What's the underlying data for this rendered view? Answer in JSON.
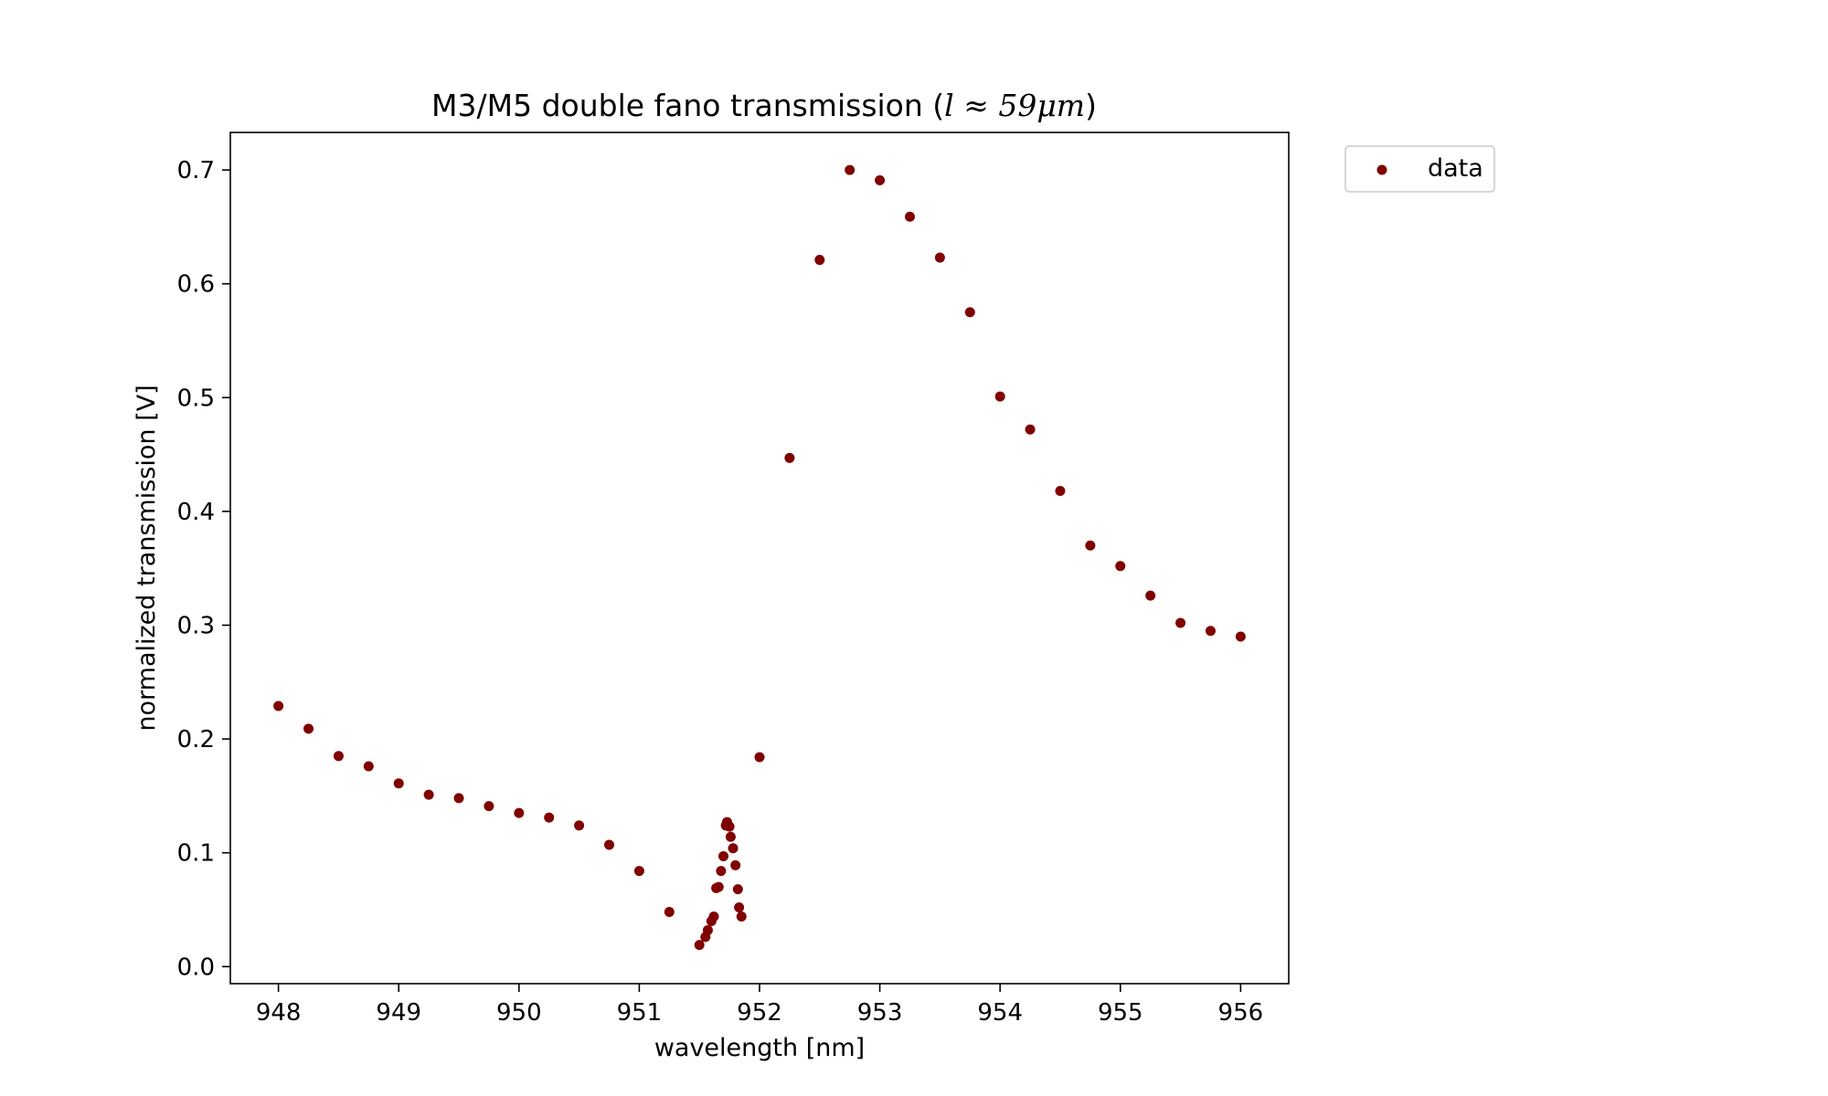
{
  "chart_data": {
    "type": "scatter",
    "title": "M3/M5 double fano transmission (",
    "title_math": "l ≈ 59μm",
    "title_end": ")",
    "xlabel": "wavelength [nm]",
    "ylabel": "normalized transmission [V]",
    "xlim": [
      947.6,
      956.4
    ],
    "ylim": [
      -0.015,
      0.733
    ],
    "xticks": [
      948,
      949,
      950,
      951,
      952,
      953,
      954,
      955,
      956
    ],
    "xtick_labels": [
      "948",
      "949",
      "950",
      "951",
      "952",
      "953",
      "954",
      "955",
      "956"
    ],
    "yticks": [
      0.0,
      0.1,
      0.2,
      0.3,
      0.4,
      0.5,
      0.6,
      0.7
    ],
    "ytick_labels": [
      "0.0",
      "0.1",
      "0.2",
      "0.3",
      "0.4",
      "0.5",
      "0.6",
      "0.7"
    ],
    "grid": false,
    "legend_position": "outside-top-right",
    "series": [
      {
        "name": "data",
        "color": "#800000",
        "points": [
          [
            948.0,
            0.229
          ],
          [
            948.25,
            0.209
          ],
          [
            948.5,
            0.185
          ],
          [
            948.75,
            0.176
          ],
          [
            949.0,
            0.161
          ],
          [
            949.25,
            0.151
          ],
          [
            949.5,
            0.148
          ],
          [
            949.75,
            0.141
          ],
          [
            950.0,
            0.135
          ],
          [
            950.25,
            0.131
          ],
          [
            950.5,
            0.124
          ],
          [
            950.75,
            0.107
          ],
          [
            951.0,
            0.084
          ],
          [
            951.25,
            0.048
          ],
          [
            951.5,
            0.019
          ],
          [
            951.55,
            0.026
          ],
          [
            951.57,
            0.032
          ],
          [
            951.6,
            0.04
          ],
          [
            951.62,
            0.044
          ],
          [
            951.64,
            0.069
          ],
          [
            951.66,
            0.07
          ],
          [
            951.68,
            0.084
          ],
          [
            951.7,
            0.097
          ],
          [
            951.72,
            0.124
          ],
          [
            951.73,
            0.127
          ],
          [
            951.75,
            0.123
          ],
          [
            951.76,
            0.114
          ],
          [
            951.78,
            0.104
          ],
          [
            951.8,
            0.089
          ],
          [
            951.82,
            0.068
          ],
          [
            951.83,
            0.052
          ],
          [
            951.85,
            0.044
          ],
          [
            952.0,
            0.184
          ],
          [
            952.25,
            0.447
          ],
          [
            952.5,
            0.621
          ],
          [
            952.75,
            0.7
          ],
          [
            953.0,
            0.691
          ],
          [
            953.25,
            0.659
          ],
          [
            953.5,
            0.623
          ],
          [
            953.75,
            0.575
          ],
          [
            954.0,
            0.501
          ],
          [
            954.25,
            0.472
          ],
          [
            954.5,
            0.418
          ],
          [
            954.75,
            0.37
          ],
          [
            955.0,
            0.352
          ],
          [
            955.25,
            0.326
          ],
          [
            955.5,
            0.302
          ],
          [
            955.75,
            0.295
          ],
          [
            956.0,
            0.29
          ]
        ]
      }
    ]
  }
}
